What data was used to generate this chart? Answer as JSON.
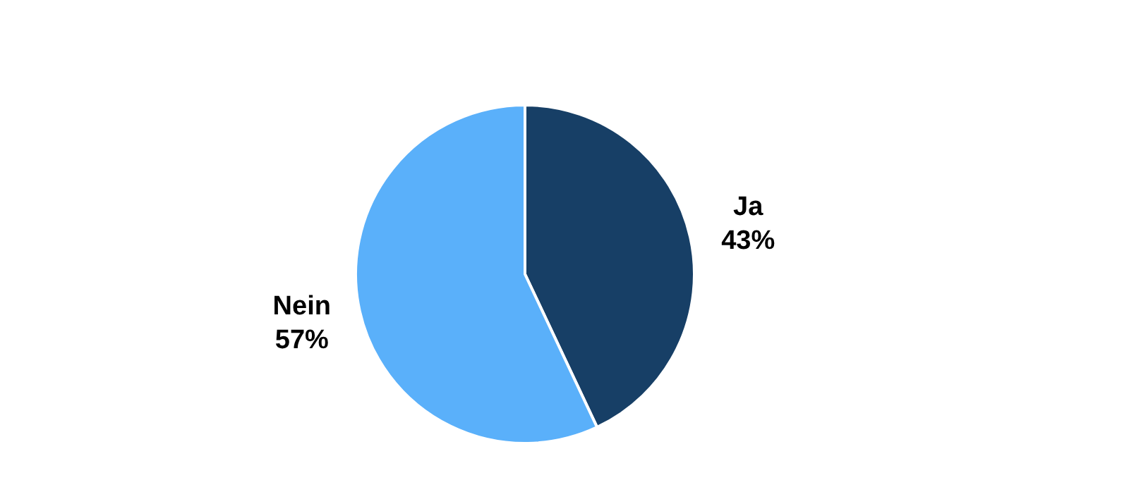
{
  "chart_data": {
    "type": "pie",
    "categories": [
      "Ja",
      "Nein"
    ],
    "values": [
      43,
      57
    ],
    "colors": [
      "#173f66",
      "#5ab0fa"
    ],
    "value_labels": [
      "43%",
      "57%"
    ],
    "legend": false
  }
}
